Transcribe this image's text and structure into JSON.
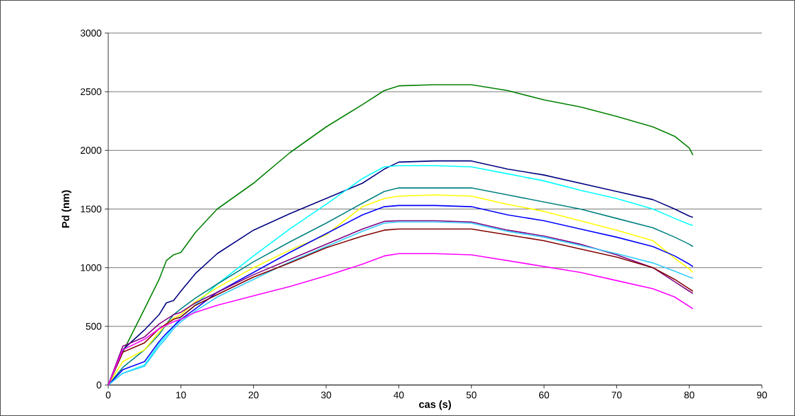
{
  "chart_data": {
    "type": "line",
    "xlabel": "cas (s)",
    "ylabel": "Pd (nm)",
    "xlim": [
      0,
      90
    ],
    "xticks": [
      0,
      10,
      20,
      30,
      40,
      50,
      60,
      70,
      80,
      90
    ],
    "ylim": [
      0,
      3000
    ],
    "yticks": [
      0,
      500,
      1000,
      1500,
      2000,
      2500,
      3000
    ],
    "grid": "y",
    "x": [
      0,
      2,
      5,
      7,
      8,
      9,
      10,
      12,
      15,
      20,
      25,
      30,
      35,
      38,
      40,
      45,
      50,
      55,
      60,
      65,
      70,
      75,
      78,
      80,
      80.5
    ],
    "series": [
      {
        "color": "#008000",
        "values": [
          0,
          280,
          650,
          900,
          1060,
          1110,
          1130,
          1300,
          1500,
          1720,
          1980,
          2200,
          2390,
          2510,
          2550,
          2560,
          2560,
          2510,
          2430,
          2370,
          2290,
          2200,
          2120,
          2020,
          1960
        ]
      },
      {
        "color": "#000080",
        "values": [
          0,
          300,
          470,
          600,
          700,
          720,
          800,
          950,
          1120,
          1320,
          1460,
          1590,
          1720,
          1840,
          1900,
          1910,
          1910,
          1840,
          1790,
          1720,
          1650,
          1580,
          1500,
          1440,
          1430
        ]
      },
      {
        "color": "#00ffff",
        "values": [
          0,
          100,
          170,
          350,
          420,
          500,
          580,
          680,
          860,
          1100,
          1330,
          1540,
          1760,
          1860,
          1870,
          1870,
          1860,
          1800,
          1740,
          1660,
          1590,
          1500,
          1420,
          1370,
          1360
        ]
      },
      {
        "color": "#008080",
        "values": [
          0,
          150,
          300,
          430,
          520,
          600,
          650,
          740,
          860,
          1050,
          1220,
          1380,
          1550,
          1650,
          1680,
          1680,
          1680,
          1620,
          1560,
          1500,
          1420,
          1340,
          1260,
          1200,
          1180
        ]
      },
      {
        "color": "#ffff00",
        "values": [
          0,
          200,
          300,
          450,
          520,
          570,
          600,
          710,
          830,
          1000,
          1150,
          1280,
          1520,
          1590,
          1610,
          1620,
          1610,
          1540,
          1480,
          1400,
          1320,
          1230,
          1080,
          990,
          960
        ]
      },
      {
        "color": "#0000ff",
        "values": [
          0,
          130,
          200,
          370,
          440,
          500,
          560,
          650,
          790,
          960,
          1130,
          1290,
          1450,
          1520,
          1530,
          1530,
          1520,
          1450,
          1400,
          1330,
          1260,
          1180,
          1100,
          1030,
          1010
        ]
      },
      {
        "color": "#800080",
        "values": [
          0,
          330,
          410,
          520,
          560,
          600,
          620,
          700,
          790,
          940,
          1070,
          1200,
          1330,
          1395,
          1400,
          1400,
          1390,
          1320,
          1270,
          1200,
          1110,
          1000,
          880,
          800,
          780
        ]
      },
      {
        "color": "#33ccff",
        "values": [
          0,
          100,
          160,
          330,
          400,
          480,
          540,
          630,
          750,
          900,
          1050,
          1180,
          1310,
          1380,
          1390,
          1390,
          1380,
          1310,
          1260,
          1190,
          1120,
          1040,
          970,
          920,
          910
        ]
      },
      {
        "color": "#800000",
        "values": [
          0,
          280,
          360,
          480,
          520,
          560,
          580,
          680,
          770,
          920,
          1040,
          1170,
          1270,
          1320,
          1330,
          1330,
          1330,
          1280,
          1230,
          1160,
          1090,
          1000,
          900,
          820,
          800
        ]
      },
      {
        "color": "#ff00ff",
        "values": [
          0,
          300,
          390,
          480,
          510,
          540,
          560,
          620,
          680,
          760,
          840,
          930,
          1030,
          1100,
          1120,
          1120,
          1110,
          1060,
          1010,
          960,
          890,
          820,
          750,
          670,
          650
        ]
      }
    ]
  }
}
